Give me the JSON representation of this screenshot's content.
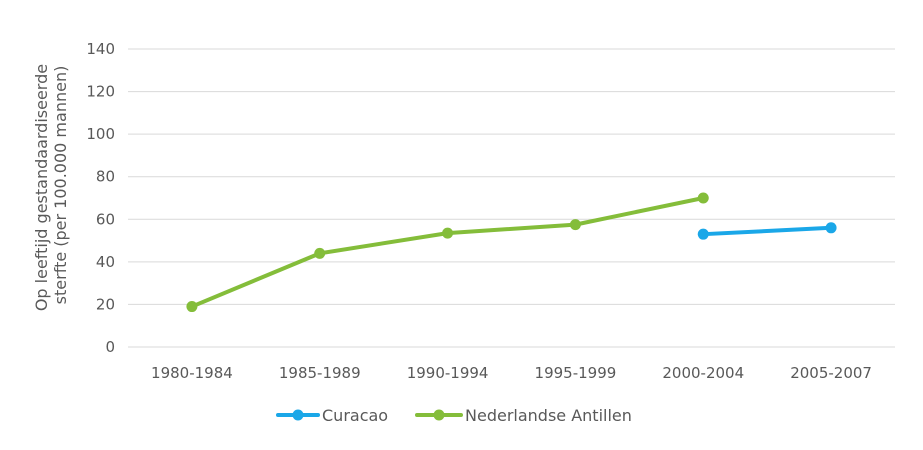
{
  "chart_data": {
    "type": "line",
    "categories": [
      "1980-1984",
      "1985-1989",
      "1990-1994",
      "1995-1999",
      "2000-2004",
      "2005-2007"
    ],
    "ylabel_lines": [
      "Op leeftijd gestandaardiseerde",
      "sterfte (per 100.000 mannen)"
    ],
    "ylim": [
      0,
      140
    ],
    "yticks": [
      "0",
      "20",
      "40",
      "60",
      "80",
      "100",
      "120",
      "140"
    ],
    "grid": true,
    "legend_position": "bottom",
    "series": [
      {
        "name": "Curacao",
        "color": "#1aa7e8",
        "values": [
          null,
          null,
          null,
          null,
          53,
          56
        ]
      },
      {
        "name": "Nederlandse Antillen",
        "color": "#84bd3a",
        "values": [
          19,
          44,
          53.5,
          57.5,
          70,
          null
        ]
      }
    ]
  }
}
